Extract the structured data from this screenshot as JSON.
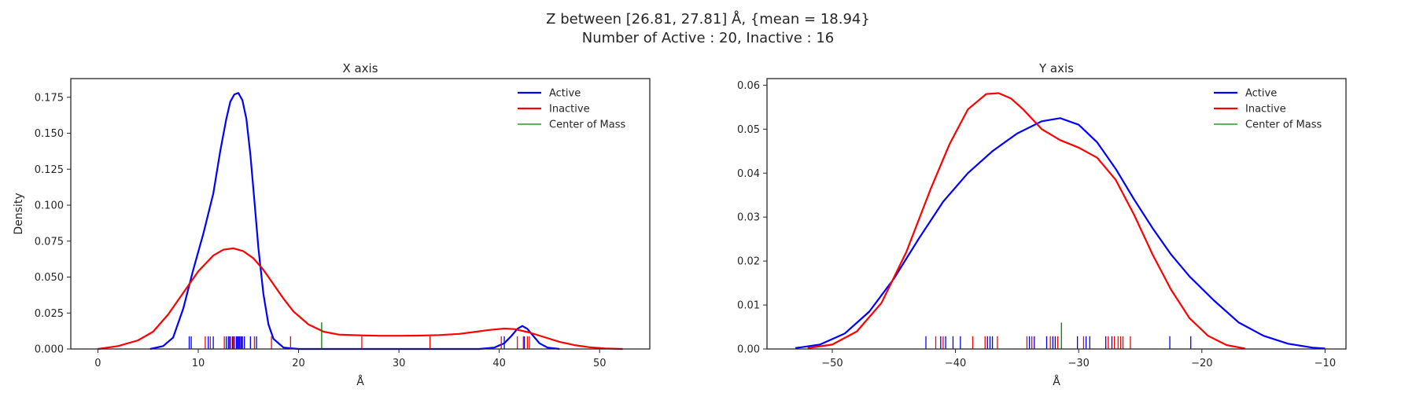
{
  "suptitle": {
    "line1": "Z between [26.81, 27.81] Å, {mean = 18.94}",
    "line2": "Number of Active : 20, Inactive : 16"
  },
  "chart_data": [
    {
      "type": "line",
      "title": "X axis",
      "xlabel": "Å",
      "ylabel": "Density",
      "xlim": [
        -2.7,
        55
      ],
      "ylim": [
        0,
        0.188
      ],
      "xticks": [
        0,
        10,
        20,
        30,
        40,
        50
      ],
      "xtick_labels": [
        "0",
        "10",
        "20",
        "30",
        "40",
        "50"
      ],
      "yticks": [
        0,
        0.025,
        0.05,
        0.075,
        0.1,
        0.125,
        0.15,
        0.175
      ],
      "ytick_labels": [
        "0.000",
        "0.025",
        "0.050",
        "0.075",
        "0.100",
        "0.125",
        "0.150",
        "0.175"
      ],
      "legend_loc": "top-right",
      "grid": false,
      "series": [
        {
          "name": "Active",
          "color": "#0000ff",
          "x": [
            5.2,
            6.5,
            7.5,
            8.5,
            9.5,
            10.5,
            11.5,
            12.2,
            12.8,
            13.2,
            13.6,
            14.0,
            14.4,
            14.8,
            15.2,
            15.6,
            16.0,
            16.5,
            17.0,
            17.5,
            18.5,
            20,
            22,
            25,
            30,
            35,
            38,
            39.5,
            40.5,
            41.2,
            41.8,
            42.3,
            42.8,
            43.4,
            44.0,
            44.8,
            46
          ],
          "y": [
            0.0,
            0.002,
            0.008,
            0.028,
            0.055,
            0.08,
            0.108,
            0.138,
            0.16,
            0.172,
            0.177,
            0.178,
            0.173,
            0.16,
            0.135,
            0.103,
            0.07,
            0.038,
            0.017,
            0.007,
            0.001,
            0.0,
            0.0,
            0.0,
            0.0,
            0.0,
            0.0,
            0.001,
            0.004,
            0.009,
            0.014,
            0.016,
            0.014,
            0.009,
            0.004,
            0.001,
            0.0
          ]
        },
        {
          "name": "Inactive",
          "color": "#ff0000",
          "x": [
            0,
            2,
            4,
            5.5,
            7,
            8.5,
            10,
            11.5,
            12.5,
            13.5,
            14.5,
            15.5,
            16.5,
            17.5,
            18.5,
            19.5,
            21,
            22.5,
            24,
            26,
            28,
            30,
            32,
            34,
            36,
            37.5,
            39,
            40.5,
            41.5,
            43,
            44.5,
            46,
            47.5,
            49,
            50.5,
            52.3
          ],
          "y": [
            0.0,
            0.002,
            0.006,
            0.012,
            0.024,
            0.039,
            0.054,
            0.065,
            0.069,
            0.07,
            0.068,
            0.063,
            0.055,
            0.045,
            0.035,
            0.026,
            0.017,
            0.012,
            0.01,
            0.0095,
            0.0092,
            0.0092,
            0.0093,
            0.0097,
            0.0105,
            0.0118,
            0.0132,
            0.0142,
            0.0138,
            0.0115,
            0.0082,
            0.005,
            0.0027,
            0.0012,
            0.0004,
            0.0
          ]
        }
      ],
      "rugs": [
        {
          "name": "Active",
          "color": "#0000ff",
          "height": 0.0088,
          "values": [
            9.1,
            9.3,
            11.0,
            11.5,
            12.8,
            13.0,
            13.2,
            13.4,
            13.6,
            13.8,
            13.9,
            14.0,
            14.1,
            14.3,
            14.4,
            14.6,
            15.2,
            15.8,
            40.5,
            42.5
          ]
        },
        {
          "name": "Inactive",
          "color": "#ff0000",
          "height": 0.0088,
          "values": [
            10.7,
            11.2,
            12.6,
            13.1,
            13.5,
            14.2,
            15.6,
            17.3,
            19.2,
            26.3,
            33.1,
            40.2,
            41.8,
            42.4,
            42.8,
            43.0
          ]
        },
        {
          "name": "Center of Mass",
          "color": "#008000",
          "height": 0.0185,
          "values": [
            22.3
          ]
        }
      ]
    },
    {
      "type": "line",
      "title": "Y axis",
      "xlabel": "Å",
      "ylabel": "",
      "xlim": [
        -55.3,
        -8.3
      ],
      "ylim": [
        0,
        0.0615
      ],
      "xticks": [
        -50,
        -40,
        -30,
        -20,
        -10
      ],
      "xtick_labels": [
        "−50",
        "−40",
        "−30",
        "−20",
        "−10"
      ],
      "yticks": [
        0,
        0.01,
        0.02,
        0.03,
        0.04,
        0.05,
        0.06
      ],
      "ytick_labels": [
        "0.00",
        "0.01",
        "0.02",
        "0.03",
        "0.04",
        "0.05",
        "0.06"
      ],
      "legend_loc": "top-right",
      "grid": false,
      "series": [
        {
          "name": "Active",
          "color": "#0000ff",
          "x": [
            -53,
            -51,
            -49,
            -47,
            -45,
            -43,
            -41,
            -39,
            -37,
            -35,
            -33,
            -31.5,
            -30,
            -28.5,
            -27,
            -25.5,
            -24,
            -22.5,
            -21,
            -19,
            -17,
            -15,
            -13,
            -11,
            -10
          ],
          "y": [
            0.0002,
            0.001,
            0.0035,
            0.0085,
            0.016,
            0.025,
            0.0335,
            0.04,
            0.045,
            0.049,
            0.0518,
            0.0525,
            0.051,
            0.047,
            0.041,
            0.034,
            0.0275,
            0.0215,
            0.0165,
            0.011,
            0.006,
            0.003,
            0.0012,
            0.0003,
            0.0001
          ]
        },
        {
          "name": "Inactive",
          "color": "#ff0000",
          "x": [
            -52,
            -50,
            -48,
            -46,
            -44,
            -42,
            -40.5,
            -39,
            -37.5,
            -36.5,
            -35.5,
            -34.5,
            -33,
            -31.5,
            -30,
            -28.5,
            -27,
            -25.5,
            -24,
            -22.5,
            -21,
            -19.5,
            -18,
            -16.5
          ],
          "y": [
            0.0002,
            0.001,
            0.004,
            0.0105,
            0.022,
            0.0365,
            0.0465,
            0.0545,
            0.058,
            0.0582,
            0.057,
            0.0545,
            0.05,
            0.0475,
            0.0458,
            0.0435,
            0.0385,
            0.0305,
            0.0215,
            0.0135,
            0.007,
            0.003,
            0.0009,
            0.0001
          ]
        }
      ],
      "rugs": [
        {
          "name": "Active",
          "color": "#0000ff",
          "height": 0.0029,
          "values": [
            -42.4,
            -41.2,
            -40.8,
            -40.2,
            -39.6,
            -37.4,
            -37.2,
            -37.0,
            -34.0,
            -33.6,
            -32.6,
            -32.1,
            -31.9,
            -30.1,
            -29.4,
            -29.1,
            -27.8,
            -27.3,
            -22.6,
            -20.9
          ]
        },
        {
          "name": "Inactive",
          "color": "#ff0000",
          "height": 0.0029,
          "values": [
            -41.6,
            -41.0,
            -38.6,
            -37.6,
            -36.6,
            -34.2,
            -33.8,
            -32.3,
            -31.7,
            -29.6,
            -27.6,
            -27.1,
            -26.8,
            -26.6,
            -26.4,
            -25.8
          ]
        },
        {
          "name": "Center of Mass",
          "color": "#008000",
          "height": 0.006,
          "values": [
            -31.4
          ]
        }
      ]
    }
  ]
}
